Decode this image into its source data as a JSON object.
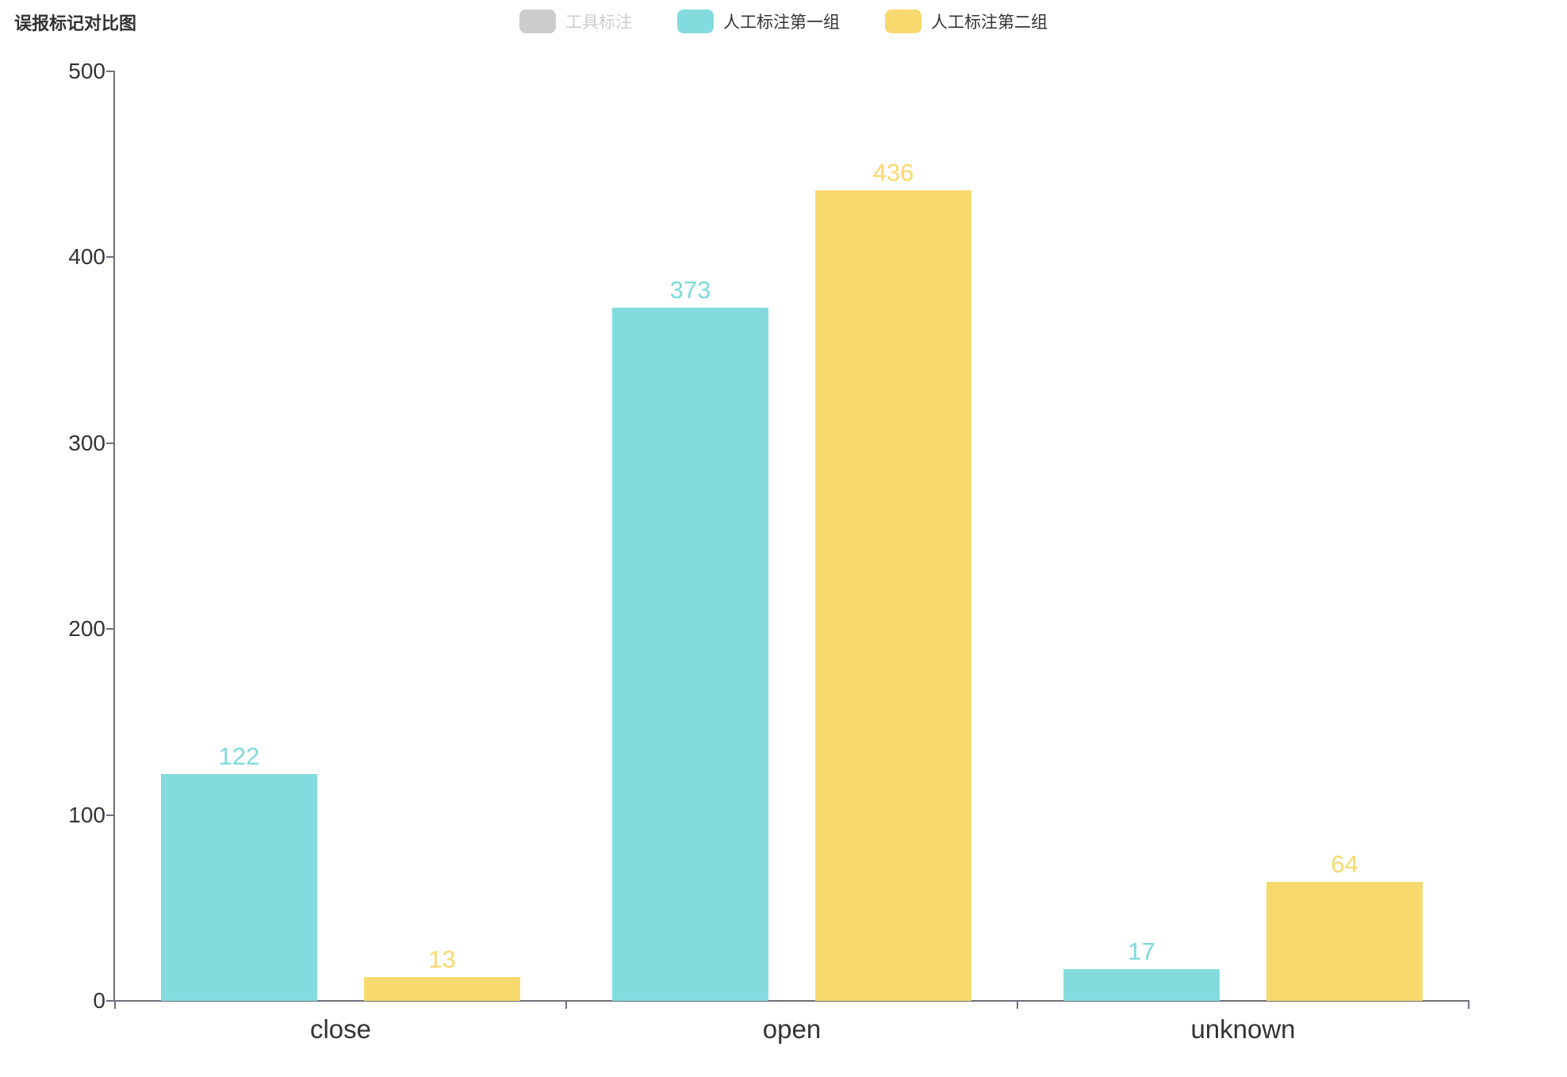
{
  "chart": {
    "title": "误报标记对比图"
  },
  "legend": {
    "items": [
      {
        "label": "工具标注",
        "color": "#CCCCCC",
        "text_color": "#CCCCCC",
        "selected": false
      },
      {
        "label": "人工标注第一组",
        "color": "#84DBDE",
        "text_color": "#333333",
        "selected": true
      },
      {
        "label": "人工标注第二组",
        "color": "#F8D96E",
        "text_color": "#333333",
        "selected": true
      }
    ]
  },
  "chart_data": {
    "type": "bar",
    "title": "误报标记对比图",
    "categories": [
      "close",
      "open",
      "unknown"
    ],
    "series": [
      {
        "name": "工具标注",
        "color": "#CCCCCC",
        "visible": false,
        "values": []
      },
      {
        "name": "人工标注第一组",
        "color": "#84DBDE",
        "visible": true,
        "values": [
          122,
          373,
          17
        ]
      },
      {
        "name": "人工标注第二组",
        "color": "#F8D96E",
        "visible": true,
        "values": [
          13,
          436,
          64
        ]
      }
    ],
    "value_label_colors": {
      "人工标注第一组": "#7ED9DC",
      "人工标注第二组": "#F8D96E"
    },
    "ylim": [
      0,
      500
    ],
    "yticks": [
      0,
      100,
      200,
      300,
      400,
      500
    ],
    "grid": false,
    "legend_position": "top",
    "bar_value_labels": true
  },
  "colors": {
    "axis": "#6E7079",
    "label": "#333333",
    "background": "#FFFFFF"
  }
}
